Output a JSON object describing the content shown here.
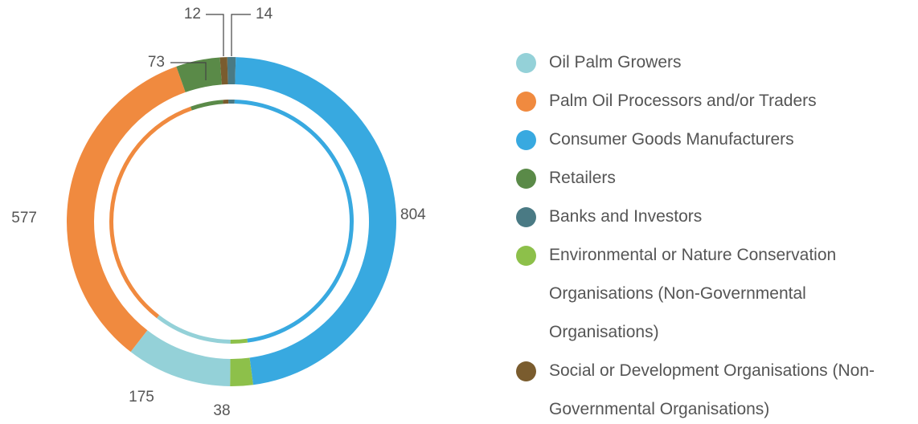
{
  "chart_data": {
    "type": "donut",
    "categories": [
      "Banks and Investors",
      "Consumer Goods Manufacturers",
      "Environmental or Nature Conservation Organisations (Non-Governmental Organisations)",
      "Oil Palm Growers",
      "Palm Oil Processors and/or Traders",
      "Retailers",
      "Social or Development Organisations (Non-Governmental Organisations)"
    ],
    "values": [
      14,
      804,
      38,
      175,
      577,
      73,
      12
    ],
    "colors": [
      "#4a7a84",
      "#38a9e0",
      "#8dc04a",
      "#94d1d8",
      "#f08a3f",
      "#5a8a48",
      "#7a5c2e"
    ],
    "legend_order": [
      3,
      4,
      1,
      5,
      0,
      2,
      6
    ]
  }
}
